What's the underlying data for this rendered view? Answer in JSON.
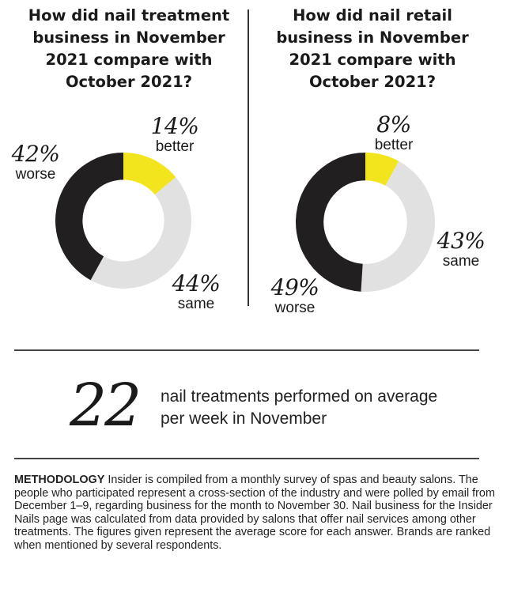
{
  "chart_data": [
    {
      "type": "pie",
      "title": "How did nail treatment business in November 2021 compare with October 2021?",
      "categories": [
        "better",
        "same",
        "worse"
      ],
      "values": [
        14,
        44,
        42
      ],
      "labels": [
        "14%",
        "44%",
        "42%"
      ],
      "colors": [
        "#f2e51e",
        "#e1e1e1",
        "#221f20"
      ]
    },
    {
      "type": "pie",
      "title": "How did nail retail business in November 2021 compare with October 2021?",
      "categories": [
        "better",
        "same",
        "worse"
      ],
      "values": [
        8,
        43,
        49
      ],
      "labels": [
        "8%",
        "43%",
        "49%"
      ],
      "colors": [
        "#f2e51e",
        "#e1e1e1",
        "#221f20"
      ]
    }
  ],
  "stat": {
    "number": "22",
    "text": "nail treatments performed on average per week in November"
  },
  "methodology": {
    "heading": "METHODOLOGY",
    "body": "Insider is compiled from a monthly survey of spas and beauty salons. The people who participated represent a cross-section of the industry and were polled by email from December 1–9, regarding business for the month to November 30. Nail business for the Insider Nails page was calculated from data provided by salons that offer nail services among other treatments. The figures given represent the average score for each answer. Brands are ranked when mentioned by several respondents."
  }
}
